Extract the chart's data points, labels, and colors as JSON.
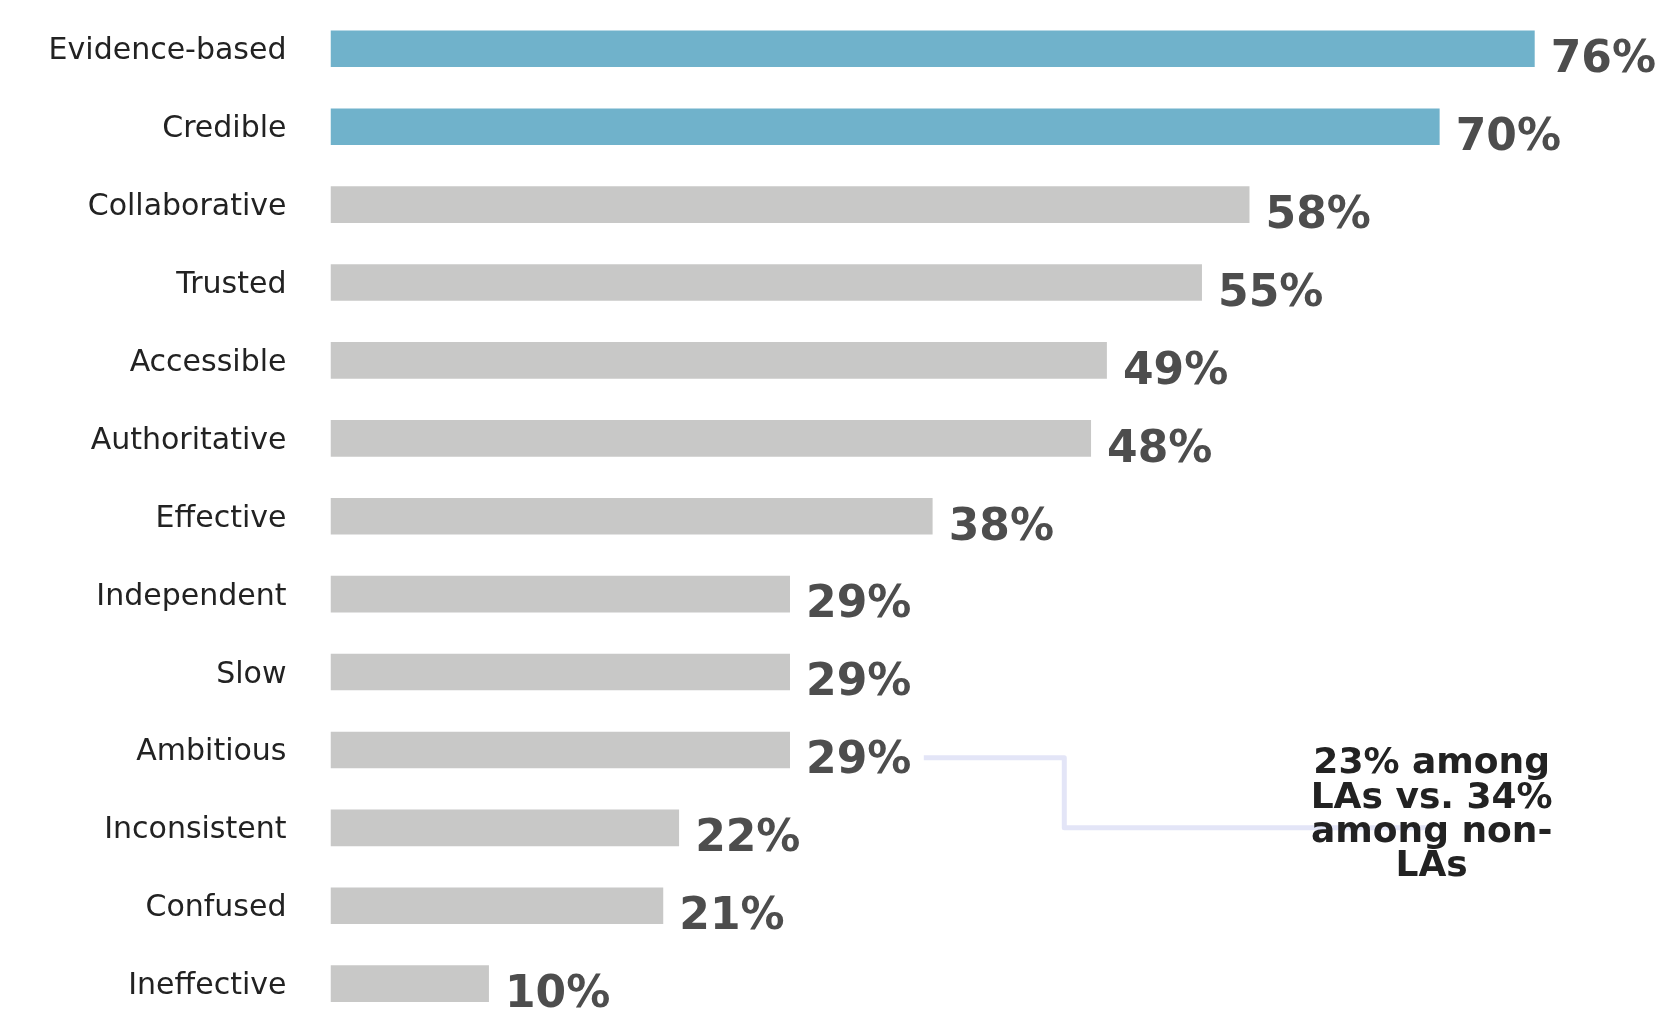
{
  "chart_data": {
    "type": "bar",
    "orientation": "horizontal",
    "categories": [
      "Evidence-based",
      "Credible",
      "Collaborative",
      "Trusted",
      "Accessible",
      "Authoritative",
      "Effective",
      "Independent",
      "Slow",
      "Ambitious",
      "Inconsistent",
      "Confused",
      "Ineffective"
    ],
    "values": [
      76,
      70,
      58,
      55,
      49,
      48,
      38,
      29,
      29,
      29,
      22,
      21,
      10
    ],
    "value_labels": [
      "76%",
      "70%",
      "58%",
      "55%",
      "49%",
      "48%",
      "38%",
      "29%",
      "29%",
      "29%",
      "22%",
      "21%",
      "10%"
    ],
    "colors": [
      "#70b2cb",
      "#70b2cb",
      "#c8c8c7",
      "#c8c8c7",
      "#c8c8c7",
      "#c8c8c7",
      "#c8c8c7",
      "#c8c8c7",
      "#c8c8c7",
      "#c8c8c7",
      "#c8c8c7",
      "#c8c8c7",
      "#c8c8c7"
    ],
    "tick_labels": "y",
    "annotations": [
      "23% among LAs vs. 34% among non-LAs"
    ]
  }
}
